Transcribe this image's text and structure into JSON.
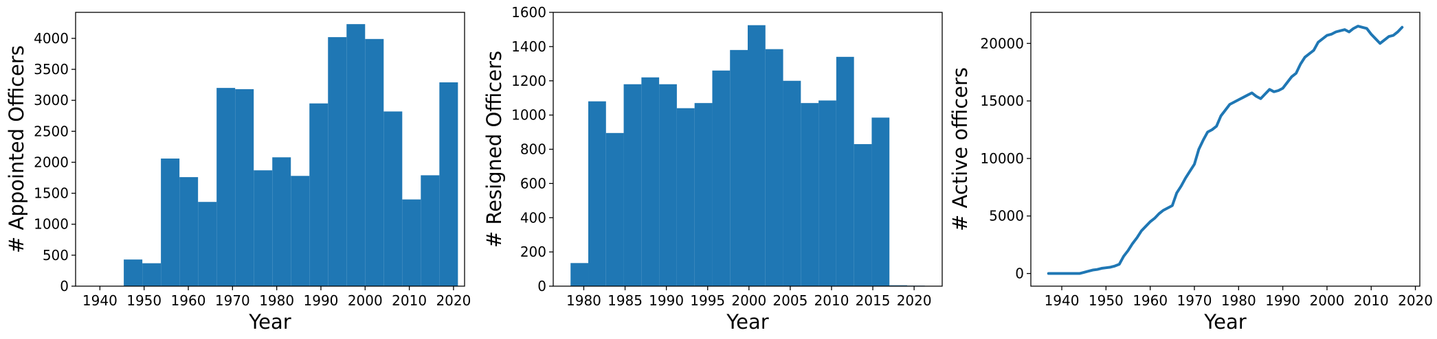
{
  "colors": {
    "accent": "#1f77b4",
    "axis": "#000000",
    "background": "#ffffff"
  },
  "chart_data": [
    {
      "type": "bar",
      "xlabel": "Year",
      "ylabel": "# Appointed Officers",
      "xlim": [
        1934.5,
        2022.5
      ],
      "ylim": [
        0,
        4420
      ],
      "xticks": [
        1940,
        1950,
        1960,
        1970,
        1980,
        1990,
        2000,
        2010,
        2020
      ],
      "yticks": [
        0,
        500,
        1000,
        1500,
        2000,
        2500,
        3000,
        3500,
        4000
      ],
      "bin_edges": [
        1937,
        1941.2,
        1945.4,
        1949.6,
        1953.8,
        1958,
        1962.2,
        1966.4,
        1970.6,
        1974.8,
        1979,
        1983.2,
        1987.4,
        1991.6,
        1995.8,
        2000,
        2004.2,
        2008.4,
        2012.6,
        2016.8,
        2021
      ],
      "values": [
        0,
        0,
        430,
        370,
        2060,
        1760,
        1360,
        3200,
        3180,
        1870,
        2080,
        1780,
        2950,
        4020,
        4230,
        3990,
        2820,
        1400,
        1790,
        3290
      ],
      "grid": false
    },
    {
      "type": "bar",
      "xlabel": "Year",
      "ylabel": "# Resigned Officers",
      "xlim": [
        1976.3,
        2023.4
      ],
      "ylim": [
        0,
        1600
      ],
      "xticks": [
        1980,
        1985,
        1990,
        1995,
        2000,
        2005,
        2010,
        2015,
        2020
      ],
      "yticks": [
        0,
        200,
        400,
        600,
        800,
        1000,
        1200,
        1400,
        1600
      ],
      "bin_edges": [
        1978.4,
        1980.545,
        1982.69,
        1984.835,
        1986.98,
        1989.125,
        1991.27,
        1993.415,
        1995.56,
        1997.705,
        1999.85,
        2001.995,
        2004.14,
        2006.285,
        2008.43,
        2010.575,
        2012.72,
        2014.865,
        2017.01,
        2019.155,
        2021.3
      ],
      "values": [
        135,
        1080,
        895,
        1180,
        1220,
        1180,
        1040,
        1070,
        1260,
        1380,
        1525,
        1385,
        1200,
        1070,
        1085,
        1340,
        830,
        985,
        5,
        3
      ],
      "grid": false
    },
    {
      "type": "line",
      "xlabel": "Year",
      "ylabel": "# Active officers",
      "xlim": [
        1933,
        2021
      ],
      "ylim": [
        -1100,
        22700
      ],
      "xticks": [
        1940,
        1950,
        1960,
        1970,
        1980,
        1990,
        2000,
        2010,
        2020
      ],
      "yticks": [
        0,
        5000,
        10000,
        15000,
        20000
      ],
      "x": [
        1937,
        1938,
        1939,
        1940,
        1941,
        1942,
        1943,
        1944,
        1945,
        1946,
        1947,
        1948,
        1949,
        1950,
        1951,
        1952,
        1953,
        1954,
        1955,
        1956,
        1957,
        1958,
        1959,
        1960,
        1961,
        1962,
        1963,
        1964,
        1965,
        1966,
        1967,
        1968,
        1969,
        1970,
        1971,
        1972,
        1973,
        1974,
        1975,
        1976,
        1977,
        1978,
        1979,
        1980,
        1981,
        1982,
        1983,
        1984,
        1985,
        1986,
        1987,
        1988,
        1989,
        1990,
        1991,
        1992,
        1993,
        1994,
        1995,
        1996,
        1997,
        1998,
        1999,
        2000,
        2001,
        2002,
        2003,
        2004,
        2005,
        2006,
        2007,
        2008,
        2009,
        2010,
        2011,
        2012,
        2013,
        2014,
        2015,
        2016,
        2017
      ],
      "series": [
        {
          "values": [
            0,
            0,
            0,
            0,
            0,
            0,
            0,
            0,
            100,
            200,
            300,
            350,
            450,
            500,
            550,
            650,
            800,
            1500,
            2000,
            2600,
            3100,
            3700,
            4100,
            4500,
            4800,
            5200,
            5500,
            5700,
            5900,
            7000,
            7600,
            8300,
            8900,
            9500,
            10800,
            11600,
            12300,
            12500,
            12800,
            13700,
            14200,
            14700,
            14900,
            15100,
            15300,
            15500,
            15700,
            15400,
            15200,
            15600,
            16000,
            15800,
            15900,
            16100,
            16600,
            17100,
            17400,
            18200,
            18800,
            19100,
            19400,
            20100,
            20400,
            20700,
            20800,
            21000,
            21100,
            21200,
            21000,
            21300,
            21500,
            21400,
            21300,
            20800,
            20400,
            20000,
            20300,
            20600,
            20700,
            21000,
            21400
          ],
          "color": "#1f77b4"
        }
      ],
      "grid": false
    }
  ]
}
